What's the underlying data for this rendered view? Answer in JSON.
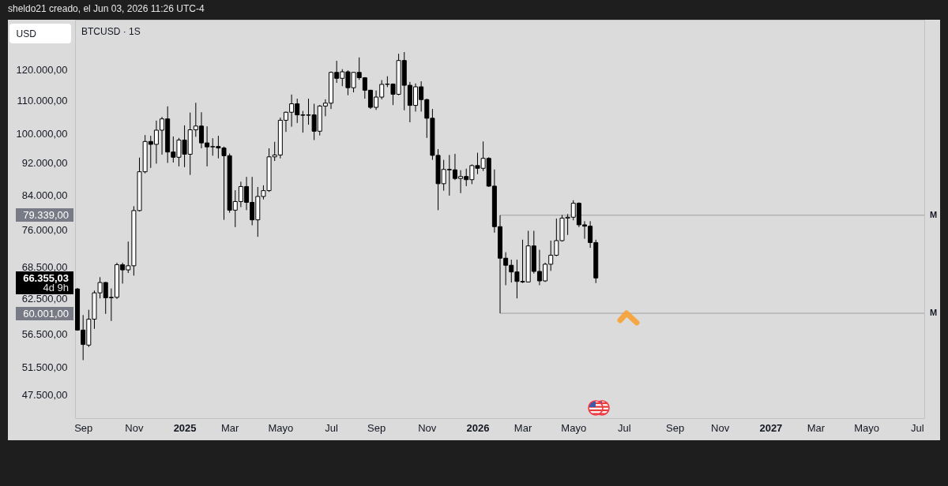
{
  "chart_data": {
    "type": "candlestick",
    "title": "BTCUSD · 1S",
    "ylabel": "USD",
    "x": [
      "2024-08-26",
      "2024-09-02",
      "2024-09-09",
      "2024-09-16",
      "2024-09-23",
      "2024-09-30",
      "2024-10-07",
      "2024-10-14",
      "2024-10-21",
      "2024-10-28",
      "2024-11-04",
      "2024-11-11",
      "2024-11-18",
      "2024-11-25",
      "2024-12-02",
      "2024-12-09",
      "2024-12-16",
      "2024-12-23",
      "2024-12-30",
      "2025-01-06",
      "2025-01-13",
      "2025-01-20",
      "2025-01-27",
      "2025-02-03",
      "2025-02-10",
      "2025-02-17",
      "2025-02-24",
      "2025-03-03",
      "2025-03-10",
      "2025-03-17",
      "2025-03-24",
      "2025-03-31",
      "2025-04-07",
      "2025-04-14",
      "2025-04-21",
      "2025-04-28",
      "2025-05-05",
      "2025-05-12",
      "2025-05-19",
      "2025-05-26",
      "2025-06-02",
      "2025-06-09",
      "2025-06-16",
      "2025-06-23",
      "2025-06-30",
      "2025-07-07",
      "2025-07-14",
      "2025-07-21",
      "2025-07-28",
      "2025-08-04",
      "2025-08-11",
      "2025-08-18",
      "2025-08-25",
      "2025-09-01",
      "2025-09-08",
      "2025-09-15",
      "2025-09-22",
      "2025-09-29",
      "2025-10-06",
      "2025-10-13",
      "2025-10-20",
      "2025-10-27",
      "2025-11-03",
      "2025-11-10",
      "2025-11-17",
      "2025-11-24",
      "2025-12-01",
      "2025-12-08",
      "2025-12-15",
      "2025-12-22",
      "2025-12-29",
      "2026-01-05",
      "2026-01-12",
      "2026-01-19",
      "2026-01-26",
      "2026-02-02",
      "2026-02-09",
      "2026-02-16",
      "2026-02-23",
      "2026-03-02",
      "2026-03-09",
      "2026-03-16",
      "2026-03-23",
      "2026-03-30",
      "2026-04-06",
      "2026-04-13",
      "2026-04-20",
      "2026-04-27",
      "2026-05-04",
      "2026-05-11",
      "2026-05-18",
      "2026-05-25",
      "2026-06-01"
    ],
    "ohlc": [
      [
        64300,
        64500,
        57100,
        57200
      ],
      [
        57200,
        59700,
        52500,
        54900
      ],
      [
        54800,
        60600,
        54500,
        59000
      ],
      [
        59000,
        64000,
        57400,
        63600
      ],
      [
        63600,
        66500,
        62600,
        65500
      ],
      [
        65500,
        65600,
        59900,
        62700
      ],
      [
        62700,
        64400,
        58700,
        62800
      ],
      [
        62800,
        69300,
        62500,
        68900
      ],
      [
        68900,
        69300,
        65300,
        67900
      ],
      [
        67900,
        73600,
        67300,
        68700
      ],
      [
        68700,
        81400,
        66800,
        80400
      ],
      [
        80400,
        93500,
        80200,
        89800
      ],
      [
        89800,
        99700,
        89400,
        97900
      ],
      [
        97900,
        99500,
        90800,
        97100
      ],
      [
        97100,
        103900,
        91900,
        101100
      ],
      [
        101100,
        105000,
        94300,
        104400
      ],
      [
        104400,
        108200,
        92100,
        95000
      ],
      [
        95000,
        99300,
        92200,
        93600
      ],
      [
        93600,
        98900,
        91200,
        98300
      ],
      [
        98300,
        102500,
        91000,
        94400
      ],
      [
        94400,
        106300,
        89000,
        101200
      ],
      [
        101200,
        109300,
        99200,
        102300
      ],
      [
        102300,
        106400,
        96000,
        97500
      ],
      [
        97500,
        102200,
        91200,
        96400
      ],
      [
        96400,
        98800,
        94000,
        96500
      ],
      [
        96500,
        99500,
        93300,
        96100
      ],
      [
        96100,
        96500,
        78300,
        94000
      ],
      [
        94000,
        94600,
        79900,
        80500
      ],
      [
        80500,
        85200,
        76700,
        82500
      ],
      [
        82500,
        87300,
        81200,
        86100
      ],
      [
        86100,
        88500,
        80500,
        82300
      ],
      [
        82300,
        88500,
        77100,
        78300
      ],
      [
        78300,
        86000,
        74600,
        83700
      ],
      [
        83700,
        86400,
        83000,
        85100
      ],
      [
        85100,
        96000,
        84800,
        93700
      ],
      [
        93700,
        97800,
        92600,
        94200
      ],
      [
        94200,
        104800,
        93300,
        104000
      ],
      [
        104000,
        106600,
        100600,
        106400
      ],
      [
        106400,
        111900,
        102100,
        109000
      ],
      [
        109000,
        110600,
        103200,
        105600
      ],
      [
        105600,
        106800,
        100400,
        105500
      ],
      [
        105500,
        110600,
        102700,
        105600
      ],
      [
        105600,
        109000,
        98300,
        100800
      ],
      [
        100800,
        108600,
        99600,
        108300
      ],
      [
        108300,
        110400,
        105200,
        109200
      ],
      [
        109200,
        119500,
        107400,
        119200
      ],
      [
        119200,
        123200,
        115700,
        117200
      ],
      [
        117200,
        120300,
        114600,
        119400
      ],
      [
        119400,
        119900,
        111700,
        114100
      ],
      [
        114100,
        119300,
        112600,
        119200
      ],
      [
        119200,
        124400,
        116700,
        117400
      ],
      [
        117400,
        117600,
        110600,
        113300
      ],
      [
        113300,
        113400,
        107400,
        107900
      ],
      [
        107900,
        113200,
        107100,
        111100
      ],
      [
        111100,
        116600,
        110400,
        115200
      ],
      [
        115200,
        117900,
        114300,
        115300
      ],
      [
        115300,
        115500,
        108600,
        112000
      ],
      [
        112000,
        125700,
        111700,
        123300
      ],
      [
        123300,
        126300,
        107000,
        114900
      ],
      [
        114900,
        116000,
        103400,
        108500
      ],
      [
        108500,
        115500,
        106600,
        114400
      ],
      [
        114400,
        116200,
        106600,
        110300
      ],
      [
        110300,
        110600,
        98900,
        104600
      ],
      [
        104600,
        107400,
        92900,
        94100
      ],
      [
        94100,
        95800,
        80500,
        86800
      ],
      [
        86800,
        92900,
        85100,
        90400
      ],
      [
        90400,
        94200,
        83900,
        90300
      ],
      [
        90300,
        94500,
        87700,
        88100
      ],
      [
        88100,
        90200,
        84500,
        88600
      ],
      [
        88600,
        90600,
        86200,
        87800
      ],
      [
        87800,
        91700,
        86700,
        91400
      ],
      [
        91400,
        94800,
        89200,
        90700
      ],
      [
        90700,
        97900,
        90000,
        93300
      ],
      [
        93300,
        93600,
        86000,
        86200
      ],
      [
        86200,
        90400,
        75500,
        76800
      ],
      [
        76800,
        79339,
        60001,
        70200
      ],
      [
        70200,
        71400,
        65000,
        68800
      ],
      [
        68800,
        69900,
        65500,
        67500
      ],
      [
        67500,
        69900,
        62600,
        65700
      ],
      [
        65700,
        74000,
        65400,
        65600
      ],
      [
        65600,
        75900,
        65500,
        72700
      ],
      [
        72700,
        75900,
        67200,
        67600
      ],
      [
        67600,
        71900,
        65000,
        65800
      ],
      [
        65800,
        69300,
        65600,
        69000
      ],
      [
        69000,
        73800,
        67700,
        70800
      ],
      [
        70800,
        78600,
        70600,
        73800
      ],
      [
        73800,
        79400,
        73600,
        78700
      ],
      [
        78700,
        79600,
        75000,
        78900
      ],
      [
        78900,
        82800,
        78200,
        82100
      ],
      [
        82100,
        82300,
        76700,
        77200
      ],
      [
        77200,
        78000,
        74200,
        76900
      ],
      [
        76900,
        78000,
        72300,
        73400
      ],
      [
        73400,
        74000,
        65400,
        66355.03
      ]
    ],
    "colors": [
      "#000000",
      "#000000",
      "#ffffff",
      "#ffffff",
      "#ffffff",
      "#000000",
      "#ffffff",
      "#ffffff",
      "#000000",
      "#ffffff",
      "#ffffff",
      "#ffffff",
      "#ffffff",
      "#000000",
      "#ffffff",
      "#ffffff",
      "#000000",
      "#000000",
      "#ffffff",
      "#000000",
      "#ffffff",
      "#ffffff",
      "#000000",
      "#000000",
      "#ffffff",
      "#000000",
      "#000000",
      "#000000",
      "#ffffff",
      "#ffffff",
      "#000000",
      "#000000",
      "#ffffff",
      "#ffffff",
      "#ffffff",
      "#ffffff",
      "#ffffff",
      "#ffffff",
      "#ffffff",
      "#000000",
      "#000000",
      "#ffffff",
      "#000000",
      "#ffffff",
      "#ffffff",
      "#ffffff",
      "#000000",
      "#ffffff",
      "#000000",
      "#ffffff",
      "#000000",
      "#000000",
      "#000000",
      "#ffffff",
      "#ffffff",
      "#ffffff",
      "#000000",
      "#ffffff",
      "#000000",
      "#000000",
      "#ffffff",
      "#000000",
      "#000000",
      "#000000",
      "#000000",
      "#ffffff",
      "#000000",
      "#000000",
      "#ffffff",
      "#000000",
      "#ffffff",
      "#000000",
      "#ffffff",
      "#000000",
      "#000000",
      "#000000",
      "#000000",
      "#000000",
      "#000000",
      "#000000",
      "#ffffff",
      "#000000",
      "#000000",
      "#ffffff",
      "#ffffff",
      "#ffffff",
      "#ffffff",
      "#ffffff",
      "#ffffff",
      "#000000",
      "#000000",
      "#000000",
      "#000000"
    ],
    "series": [
      {
        "name": "M",
        "type": "line",
        "x": [
          "2026-02-02",
          "2027-07-14"
        ],
        "values": [
          79339,
          79339
        ],
        "color": "#a0a0a0"
      },
      {
        "name": "M",
        "type": "line",
        "x": [
          "2026-02-02",
          "2027-07-14"
        ],
        "values": [
          60001,
          60001
        ],
        "color": "#a0a0a0"
      }
    ],
    "xlim": [
      "2024-08-23",
      "2027-07-14"
    ],
    "xticks": [
      {
        "value": "2024-09-02",
        "label": "Sep"
      },
      {
        "value": "2024-11-04",
        "label": "Nov"
      },
      {
        "value": "2025-01-06",
        "label": "2025"
      },
      {
        "value": "2025-03-03",
        "label": "Mar"
      },
      {
        "value": "2025-05-05",
        "label": "Mayo"
      },
      {
        "value": "2025-07-07",
        "label": "Jul"
      },
      {
        "value": "2025-09-01",
        "label": "Sep"
      },
      {
        "value": "2025-11-03",
        "label": "Nov"
      },
      {
        "value": "2026-01-05",
        "label": "2026"
      },
      {
        "value": "2026-03-02",
        "label": "Mar"
      },
      {
        "value": "2026-05-04",
        "label": "Mayo"
      },
      {
        "value": "2026-07-06",
        "label": "Jul"
      },
      {
        "value": "2026-09-07",
        "label": "Sep"
      },
      {
        "value": "2026-11-02",
        "label": "Nov"
      },
      {
        "value": "2027-01-04",
        "label": "2027"
      },
      {
        "value": "2027-03-01",
        "label": "Mar"
      },
      {
        "value": "2027-05-03",
        "label": "Mayo"
      },
      {
        "value": "2027-07-05",
        "label": "Jul"
      }
    ],
    "ylim": [
      44500,
      138500
    ],
    "log": true,
    "yticks": [
      {
        "value": 47500,
        "label": "47.500,00"
      },
      {
        "value": 51500,
        "label": "51.500,00"
      },
      {
        "value": 56500,
        "label": "56.500,00"
      },
      {
        "value": 62500,
        "label": "62.500,00"
      },
      {
        "value": 68500,
        "label": "68.500,00"
      },
      {
        "value": 76000,
        "label": "76.000,00"
      },
      {
        "value": 84000,
        "label": "84.000,00"
      },
      {
        "value": 92000,
        "label": "92.000,00"
      },
      {
        "value": 100000,
        "label": "100.000,00"
      },
      {
        "value": 110000,
        "label": "110.000,00"
      },
      {
        "value": 120000,
        "label": "120.000,00"
      }
    ],
    "annotations": [
      "79.339,00",
      "66.355,03",
      "4d 9h",
      "60.001,00",
      "sheldo21 creado, el Jun 03, 2026 11:26 UTC-4"
    ]
  }
}
